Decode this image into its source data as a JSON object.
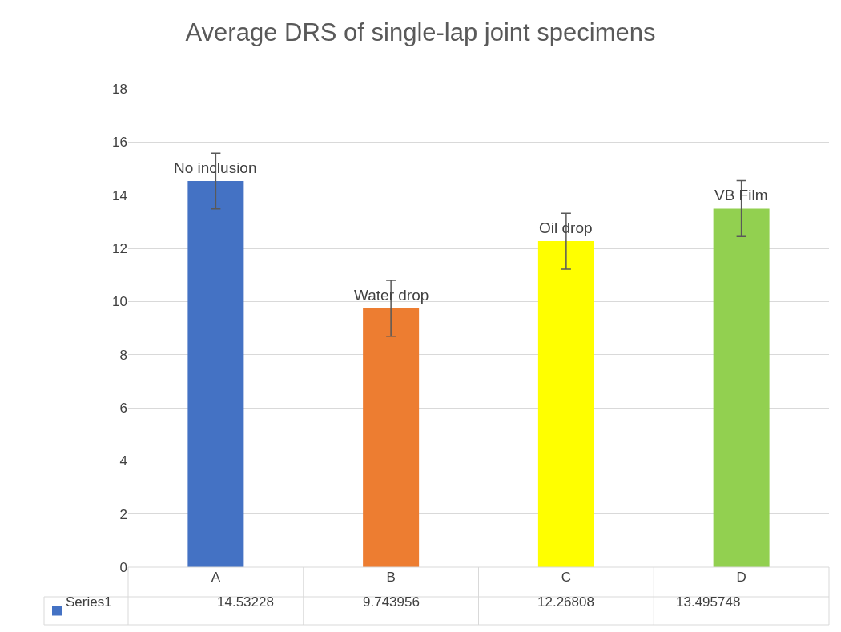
{
  "chart_data": {
    "type": "bar",
    "title": "Average DRS of single-lap joint specimens",
    "categories": [
      "A",
      "B",
      "C",
      "D"
    ],
    "series": [
      {
        "name": "Series1",
        "colors": [
          "#4472c4",
          "#ed7d31",
          "#ffff00",
          "#92d050"
        ],
        "values": [
          14.53228,
          9.743956,
          12.26808,
          13.495748
        ],
        "errors": [
          1.05,
          1.05,
          1.05,
          1.05
        ]
      }
    ],
    "annotations": [
      {
        "text": "No inclusion",
        "x": "A",
        "y": 14.53228
      },
      {
        "text": "Water drop",
        "x": "B",
        "y": 9.743956
      },
      {
        "text": "Oil drop",
        "x": "C",
        "y": 12.26808
      },
      {
        "text": "VB Film",
        "x": "D",
        "y": 13.495748
      }
    ],
    "ylim": [
      0,
      18
    ],
    "yticks": [
      0,
      2,
      4,
      6,
      8,
      10,
      12,
      14,
      16,
      18
    ],
    "grid": "y",
    "data_labels": true,
    "legend": "bottom left"
  }
}
